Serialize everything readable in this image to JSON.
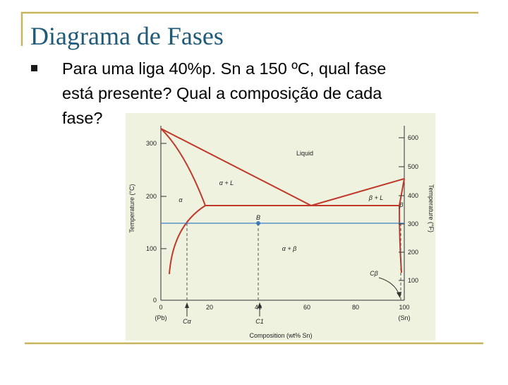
{
  "header": {
    "title": "Diagrama de Fases"
  },
  "bullets": [
    {
      "lines": [
        "Para uma liga 40%p. Sn a 150 ºC, qual fase",
        "está presente? Qual a composição de cada",
        "fase?"
      ]
    }
  ],
  "figure": {
    "y_axis_label": "Temperature (°C)",
    "y2_axis_label": "Temperature (°F)",
    "x_axis_label": "Composition (wt% Sn)",
    "yticks": [
      "300",
      "200",
      "100",
      "0"
    ],
    "y2ticks": [
      "600",
      "500",
      "400",
      "300",
      "200",
      "100"
    ],
    "xticks": [
      "0",
      "20",
      "40",
      "60",
      "80",
      "100"
    ],
    "x_end_labels": [
      "(Pb)",
      "(Sn)"
    ],
    "regions": [
      "Liquid",
      "α + L",
      "β + L",
      "α",
      "β",
      "α + β"
    ],
    "markers": [
      "B",
      "Cα",
      "C1",
      "Cβ"
    ]
  }
}
